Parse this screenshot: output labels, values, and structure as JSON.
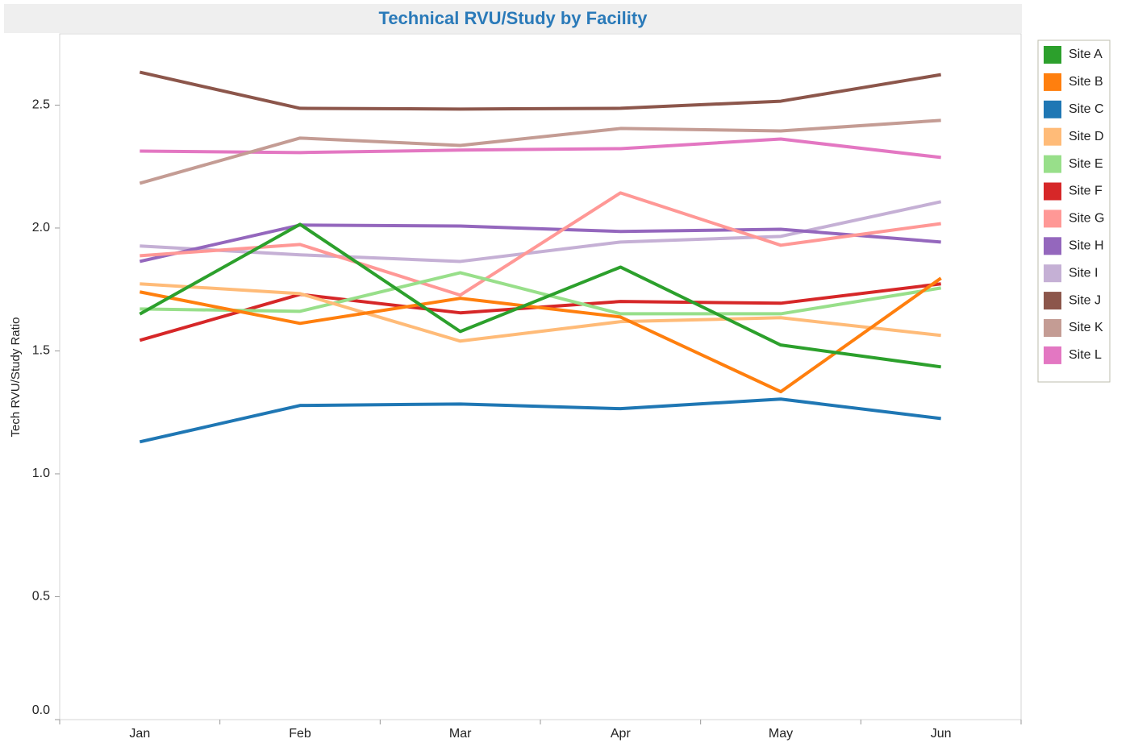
{
  "chart_data": {
    "type": "line",
    "title": "Technical RVU/Study by Facility",
    "y_label": "Tech RVU/Study Ratio",
    "categories": [
      "Jan",
      "Feb",
      "Mar",
      "Apr",
      "May",
      "Jun"
    ],
    "ylim": [
      0,
      2.79
    ],
    "yticks": [
      {
        "value": 0,
        "label": "0.0"
      },
      0.5,
      {
        "value": 1,
        "label": "1.0"
      },
      1.5,
      {
        "value": 2,
        "label": "2.0"
      },
      2.5
    ],
    "legend": "right",
    "series": [
      {
        "name": "Site A",
        "color": "#2ca02c",
        "values": [
          1.65,
          2.015,
          1.579,
          1.841,
          1.524,
          1.435
        ]
      },
      {
        "name": "Site B",
        "color": "#ff7f0e",
        "values": [
          1.74,
          1.612,
          1.714,
          1.638,
          1.334,
          1.796
        ]
      },
      {
        "name": "Site C",
        "color": "#1f77b4",
        "values": [
          1.13,
          1.278,
          1.284,
          1.265,
          1.304,
          1.225
        ]
      },
      {
        "name": "Site D",
        "color": "#ffbb78",
        "values": [
          1.773,
          1.733,
          1.54,
          1.619,
          1.635,
          1.563
        ]
      },
      {
        "name": "Site E",
        "color": "#98df8a",
        "values": [
          1.671,
          1.661,
          1.818,
          1.651,
          1.651,
          1.756
        ]
      },
      {
        "name": "Site F",
        "color": "#d62728",
        "values": [
          1.543,
          1.73,
          1.655,
          1.701,
          1.694,
          1.773
        ]
      },
      {
        "name": "Site G",
        "color": "#ff9896",
        "values": [
          1.887,
          1.933,
          1.727,
          2.143,
          1.93,
          2.018
        ]
      },
      {
        "name": "Site H",
        "color": "#9467bd",
        "values": [
          1.864,
          2.012,
          2.008,
          1.986,
          1.995,
          1.943
        ]
      },
      {
        "name": "Site I",
        "color": "#c5b0d5",
        "values": [
          1.927,
          1.891,
          1.864,
          1.943,
          1.966,
          2.107
        ]
      },
      {
        "name": "Site J",
        "color": "#8c564b",
        "values": [
          2.634,
          2.487,
          2.484,
          2.487,
          2.516,
          2.624
        ]
      },
      {
        "name": "Site K",
        "color": "#c49c94",
        "values": [
          2.182,
          2.366,
          2.336,
          2.405,
          2.395,
          2.438
        ]
      },
      {
        "name": "Site L",
        "color": "#e377c2",
        "values": [
          2.313,
          2.307,
          2.317,
          2.323,
          2.362,
          2.287
        ]
      }
    ]
  }
}
